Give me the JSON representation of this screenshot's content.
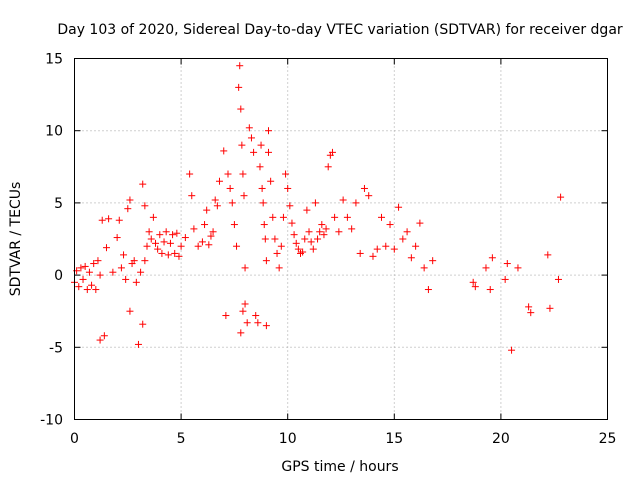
{
  "chart_data": {
    "type": "scatter",
    "title": "Day 103 of 2020, Sidereal Day-to-day VTEC variation (SDTVAR) for receiver dgar",
    "xlabel": "GPS time / hours",
    "ylabel": "SDTVAR / TECUs",
    "xlim": [
      0,
      25
    ],
    "ylim": [
      -10,
      15
    ],
    "x_ticks": [
      0,
      5,
      10,
      15,
      20,
      25
    ],
    "y_ticks": [
      -10,
      -5,
      0,
      5,
      10,
      15
    ],
    "x_tick_labels": [
      "0",
      "5",
      "10",
      "15",
      "20",
      "25"
    ],
    "y_tick_labels": [
      "-10",
      "-5",
      "0",
      "5",
      "10",
      "15"
    ],
    "grid": true,
    "marker": "+",
    "color": "#ff0000",
    "series": [
      {
        "name": "SDTVAR",
        "x": [
          0.0,
          0.1,
          0.2,
          0.3,
          0.4,
          0.5,
          0.6,
          0.7,
          0.8,
          0.9,
          1.0,
          1.1,
          1.2,
          1.3,
          1.2,
          1.4,
          1.5,
          1.6,
          1.8,
          2.0,
          2.1,
          2.2,
          2.3,
          2.4,
          2.5,
          2.6,
          2.6,
          2.7,
          2.8,
          2.9,
          3.0,
          3.1,
          3.2,
          3.2,
          3.3,
          3.3,
          3.4,
          3.5,
          3.6,
          3.7,
          3.8,
          3.9,
          4.0,
          4.1,
          4.2,
          4.3,
          4.4,
          4.5,
          4.6,
          4.7,
          4.8,
          4.9,
          5.0,
          5.2,
          5.4,
          5.5,
          5.6,
          5.8,
          6.0,
          6.1,
          6.2,
          6.3,
          6.4,
          6.5,
          6.6,
          6.7,
          6.8,
          7.0,
          7.1,
          7.2,
          7.3,
          7.4,
          7.5,
          7.6,
          7.7,
          7.75,
          7.8,
          7.8,
          7.85,
          7.9,
          7.9,
          7.95,
          8.0,
          8.0,
          8.1,
          8.2,
          8.3,
          8.4,
          8.5,
          8.6,
          8.7,
          8.75,
          8.8,
          8.85,
          8.9,
          8.95,
          9.0,
          9.0,
          9.1,
          9.1,
          9.2,
          9.3,
          9.4,
          9.5,
          9.6,
          9.7,
          9.8,
          9.9,
          10.0,
          10.1,
          10.2,
          10.3,
          10.4,
          10.5,
          10.6,
          10.7,
          10.8,
          10.9,
          11.0,
          11.1,
          11.2,
          11.3,
          11.4,
          11.5,
          11.6,
          11.7,
          11.8,
          11.9,
          12.0,
          12.1,
          12.2,
          12.4,
          12.6,
          12.8,
          13.0,
          13.2,
          13.4,
          13.6,
          13.8,
          14.0,
          14.2,
          14.4,
          14.6,
          14.8,
          15.0,
          15.2,
          15.4,
          15.6,
          15.8,
          16.0,
          16.2,
          16.4,
          16.6,
          16.8,
          18.7,
          18.8,
          19.3,
          19.5,
          19.6,
          20.2,
          20.3,
          20.5,
          20.8,
          21.3,
          21.4,
          22.2,
          22.3,
          22.7,
          22.8
        ],
        "y": [
          -0.5,
          0.3,
          -0.8,
          0.5,
          -0.3,
          0.6,
          -1.0,
          0.2,
          -0.7,
          0.8,
          -1.0,
          1.0,
          -4.5,
          3.8,
          0.0,
          -4.2,
          1.9,
          3.9,
          0.2,
          2.6,
          3.8,
          0.5,
          1.4,
          -0.3,
          4.6,
          -2.5,
          5.2,
          0.8,
          1.0,
          -0.5,
          -4.8,
          0.2,
          6.3,
          -3.4,
          4.8,
          1.0,
          2.0,
          3.0,
          2.5,
          4.0,
          2.2,
          1.8,
          2.8,
          1.5,
          2.3,
          3.0,
          1.4,
          2.2,
          2.8,
          1.5,
          2.9,
          1.3,
          2.0,
          2.6,
          7.0,
          5.5,
          3.2,
          2.0,
          2.3,
          3.5,
          4.5,
          2.1,
          2.7,
          3.0,
          5.2,
          4.8,
          6.5,
          8.6,
          -2.8,
          7.0,
          6.0,
          5.0,
          3.5,
          2.0,
          13.0,
          14.5,
          11.5,
          -4.0,
          9.0,
          7.0,
          -2.5,
          5.5,
          0.5,
          -2.0,
          -3.3,
          10.2,
          9.5,
          8.5,
          -2.8,
          -3.3,
          7.5,
          9.0,
          6.0,
          5.0,
          3.5,
          2.5,
          1.0,
          -3.5,
          10.0,
          8.5,
          6.5,
          4.0,
          2.5,
          1.5,
          0.5,
          2.0,
          4.0,
          7.0,
          6.0,
          4.8,
          3.6,
          2.8,
          2.2,
          1.8,
          1.5,
          1.6,
          2.5,
          4.5,
          3.0,
          2.3,
          1.8,
          5.0,
          2.5,
          3.0,
          3.5,
          2.8,
          3.2,
          7.5,
          8.3,
          8.5,
          4.0,
          3.0,
          5.2,
          4.0,
          3.2,
          5.0,
          1.5,
          6.0,
          5.5,
          1.3,
          1.8,
          4.0,
          2.0,
          3.5,
          1.8,
          4.7,
          2.5,
          3.0,
          1.2,
          2.0,
          3.6,
          0.5,
          -1.0,
          1.0,
          -0.5,
          -0.8,
          0.5,
          -1.0,
          1.2,
          -0.3,
          0.8,
          -5.2,
          0.5,
          -2.2,
          -2.6,
          1.4,
          -2.3,
          -0.3,
          5.4
        ]
      }
    ]
  }
}
